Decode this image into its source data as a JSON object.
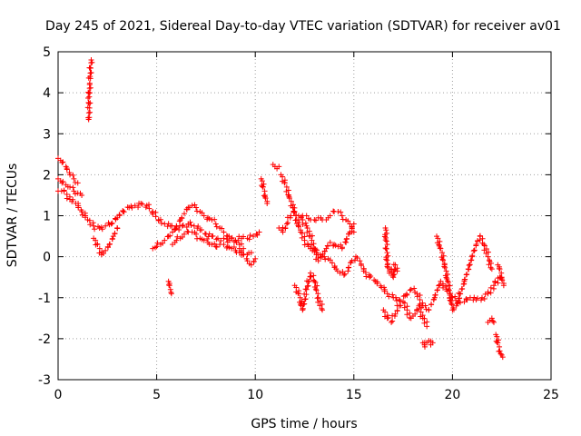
{
  "chart_data": {
    "type": "scatter",
    "title": "Day 245 of 2021, Sidereal Day-to-day VTEC variation (SDTVAR) for receiver av01",
    "xlabel": "GPS time / hours",
    "ylabel": "SDTVAR / TECUs",
    "xlim": [
      0,
      25
    ],
    "ylim": [
      -3,
      5
    ],
    "xticks": [
      0,
      5,
      10,
      15,
      20,
      25
    ],
    "yticks": [
      -3,
      -2,
      -1,
      0,
      1,
      2,
      3,
      4,
      5
    ],
    "grid": true,
    "marker": "+",
    "color": "#ff0000",
    "series": [
      {
        "name": "SDTVAR",
        "segments": [
          {
            "x": [
              0.0,
              0.3,
              0.6,
              0.9,
              1.2,
              1.5,
              1.8,
              2.1,
              2.4,
              2.7,
              3.0,
              3.3,
              3.6,
              3.9,
              4.2,
              4.5,
              4.8,
              5.1,
              5.4,
              5.7,
              6.0,
              6.3,
              6.6,
              6.9,
              7.2,
              7.5,
              7.8,
              8.1,
              8.4,
              8.7,
              9.0,
              9.3,
              9.6,
              9.9,
              10.2
            ],
            "y": [
              1.6,
              1.6,
              1.4,
              1.3,
              1.1,
              0.9,
              0.75,
              0.7,
              0.75,
              0.8,
              0.95,
              1.1,
              1.2,
              1.25,
              1.3,
              1.25,
              1.1,
              0.9,
              0.8,
              0.75,
              0.7,
              0.75,
              0.8,
              0.75,
              0.65,
              0.55,
              0.5,
              0.45,
              0.45,
              0.4,
              0.4,
              0.45,
              0.45,
              0.5,
              0.6
            ]
          },
          {
            "x": [
              0.0,
              0.2,
              0.4,
              0.6,
              0.8,
              1.0
            ],
            "y": [
              2.4,
              2.3,
              2.2,
              2.0,
              1.9,
              1.8
            ]
          },
          {
            "x": [
              0.0,
              0.2,
              0.4,
              0.6,
              0.8,
              1.0,
              1.2
            ],
            "y": [
              1.9,
              1.8,
              1.75,
              1.7,
              1.6,
              1.55,
              1.5
            ]
          },
          {
            "x": [
              1.55,
              1.58,
              1.6,
              1.62,
              1.65,
              1.68
            ],
            "y": [
              3.35,
              3.9,
              4.2,
              4.4,
              4.6,
              4.8
            ]
          },
          {
            "x": [
              1.8,
              2.0,
              2.2,
              2.4,
              2.6,
              2.8,
              3.0
            ],
            "y": [
              0.45,
              0.3,
              0.05,
              0.15,
              0.3,
              0.5,
              0.7
            ]
          },
          {
            "x": [
              4.8,
              5.0,
              5.2,
              5.4,
              5.6,
              5.8,
              6.0,
              6.2,
              6.4,
              6.6,
              6.8,
              7.0,
              7.2,
              7.4,
              7.6,
              7.8,
              8.0,
              8.2,
              8.4,
              8.6,
              8.8,
              9.0,
              9.2,
              9.4
            ],
            "y": [
              0.2,
              0.25,
              0.3,
              0.4,
              0.5,
              0.6,
              0.75,
              0.9,
              1.05,
              1.2,
              1.25,
              1.2,
              1.1,
              1.0,
              0.95,
              0.9,
              0.8,
              0.7,
              0.6,
              0.5,
              0.45,
              0.4,
              0.3,
              0.2
            ]
          },
          {
            "x": [
              5.8,
              6.0,
              6.2,
              6.4,
              6.6,
              6.8,
              7.0,
              7.2,
              7.4,
              7.6,
              7.8,
              8.0,
              8.2,
              8.4,
              8.6,
              8.8,
              9.0,
              9.2,
              9.4,
              9.6,
              9.8
            ],
            "y": [
              0.3,
              0.4,
              0.45,
              0.55,
              0.6,
              0.6,
              0.55,
              0.45,
              0.4,
              0.35,
              0.3,
              0.25,
              0.3,
              0.3,
              0.25,
              0.2,
              0.15,
              0.1,
              0.05,
              0.05,
              0.1
            ]
          },
          {
            "x": [
              5.6,
              5.65,
              5.7,
              5.75
            ],
            "y": [
              -0.6,
              -0.7,
              -0.8,
              -0.9
            ]
          },
          {
            "x": [
              9.2,
              9.4,
              9.6,
              9.8,
              10.0
            ],
            "y": [
              0.2,
              0.05,
              -0.1,
              -0.2,
              -0.05
            ]
          },
          {
            "x": [
              10.3,
              10.4,
              10.5,
              10.6
            ],
            "y": [
              1.9,
              1.7,
              1.5,
              1.3
            ]
          },
          {
            "x": [
              10.9,
              11.0,
              11.1,
              11.2
            ],
            "y": [
              2.25,
              2.2,
              2.15,
              2.2
            ]
          },
          {
            "x": [
              11.3,
              11.5,
              11.7,
              11.9,
              12.1,
              12.3,
              12.5,
              12.7,
              12.9,
              13.1,
              13.3,
              13.5,
              13.7,
              13.9,
              14.1,
              14.3,
              14.5,
              14.7,
              14.9,
              15.1,
              15.3,
              15.5
            ],
            "y": [
              2.0,
              1.8,
              1.5,
              1.2,
              0.9,
              0.6,
              0.4,
              0.25,
              0.15,
              0.1,
              0.05,
              0.0,
              -0.05,
              -0.15,
              -0.3,
              -0.4,
              -0.45,
              -0.35,
              -0.1,
              0.0,
              -0.1,
              -0.3
            ]
          },
          {
            "x": [
              11.2,
              11.4,
              11.6,
              11.8,
              12.0,
              12.2,
              12.4,
              12.6,
              12.8,
              13.0,
              13.2,
              13.4,
              13.6,
              13.8,
              14.0,
              14.2,
              14.4,
              14.6,
              14.8,
              15.0
            ],
            "y": [
              0.7,
              0.6,
              0.8,
              1.0,
              1.1,
              1.0,
              0.9,
              0.75,
              0.5,
              0.2,
              -0.1,
              0.0,
              0.2,
              0.35,
              0.3,
              0.25,
              0.2,
              0.35,
              0.6,
              0.8
            ]
          },
          {
            "x": [
              12.2,
              12.4,
              12.6,
              12.8,
              13.0,
              13.2,
              13.4,
              13.6,
              13.8,
              14.0,
              14.2,
              14.4,
              14.6,
              14.8,
              15.0
            ],
            "y": [
              0.9,
              1.0,
              1.0,
              0.9,
              0.9,
              0.95,
              0.9,
              0.9,
              1.0,
              1.1,
              1.1,
              1.0,
              0.9,
              0.8,
              0.6
            ]
          },
          {
            "x": [
              12.0,
              12.2,
              12.4,
              12.6,
              12.8,
              13.0,
              13.2,
              13.4
            ],
            "y": [
              -0.7,
              -0.9,
              -1.3,
              -0.8,
              -0.4,
              -0.6,
              -1.0,
              -1.3
            ]
          },
          {
            "x": [
              15.5,
              15.8,
              16.1,
              16.4,
              16.7,
              17.0,
              17.3,
              17.6,
              17.9,
              18.2,
              18.5,
              18.8,
              19.1,
              19.4,
              19.7,
              20.0,
              20.3,
              20.6,
              20.9,
              21.2,
              21.5,
              21.8,
              22.1,
              22.4
            ],
            "y": [
              -0.35,
              -0.5,
              -0.6,
              -0.75,
              -0.9,
              -1.0,
              -1.05,
              -0.95,
              -0.8,
              -0.9,
              -1.2,
              -1.3,
              -1.0,
              -0.6,
              -0.8,
              -1.0,
              -1.1,
              -1.1,
              -1.0,
              -1.05,
              -1.0,
              -0.9,
              -0.7,
              -0.5
            ]
          },
          {
            "x": [
              16.5,
              16.7,
              16.9,
              17.1,
              17.3,
              17.5,
              17.7,
              17.9,
              18.1,
              18.3,
              18.5,
              18.7
            ],
            "y": [
              -1.3,
              -1.5,
              -1.6,
              -1.4,
              -1.2,
              -1.1,
              -1.3,
              -1.5,
              -1.4,
              -1.2,
              -1.5,
              -1.7
            ]
          },
          {
            "x": [
              16.6,
              16.65,
              16.7,
              16.8,
              16.9,
              17.0,
              17.1,
              17.2
            ],
            "y": [
              0.7,
              0.2,
              -0.2,
              -0.4,
              -0.3,
              -0.5,
              -0.2,
              -0.35
            ]
          },
          {
            "x": [
              18.5,
              18.6,
              18.7,
              18.8,
              18.9,
              19.0
            ],
            "y": [
              -2.1,
              -2.2,
              -2.1,
              -2.05,
              -2.15,
              -2.1
            ]
          },
          {
            "x": [
              19.2,
              19.4,
              19.6,
              19.8,
              20.0,
              20.2,
              20.4,
              20.6,
              20.8,
              21.0,
              21.2,
              21.4,
              21.6,
              21.8,
              22.0
            ],
            "y": [
              0.5,
              0.2,
              -0.2,
              -0.7,
              -1.3,
              -1.2,
              -0.9,
              -0.6,
              -0.3,
              0.0,
              0.3,
              0.5,
              0.3,
              0.0,
              -0.3
            ]
          },
          {
            "x": [
              21.8,
              21.9,
              22.0,
              22.1
            ],
            "y": [
              -1.6,
              -1.55,
              -1.5,
              -1.6
            ]
          },
          {
            "x": [
              22.2,
              22.3,
              22.4,
              22.5,
              22.55
            ],
            "y": [
              -1.9,
              -2.1,
              -2.3,
              -2.4,
              -2.45
            ]
          },
          {
            "x": [
              22.3,
              22.4,
              22.5,
              22.6
            ],
            "y": [
              -0.2,
              -0.3,
              -0.5,
              -0.7
            ]
          }
        ]
      }
    ]
  }
}
